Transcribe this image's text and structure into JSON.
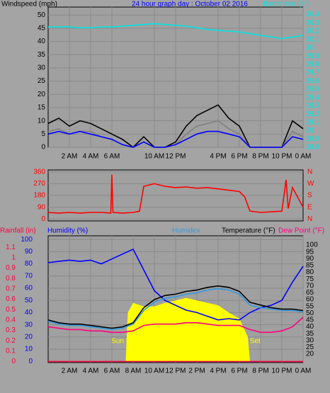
{
  "chart_data": [
    {
      "type": "line",
      "title": "24 hour graph day : October 02 2016",
      "axis_labels": [
        {
          "text": "Windspeed (mph)",
          "color": "#000000"
        },
        {
          "text": "Barometer (in)",
          "color": "#00e5e5"
        }
      ],
      "axis_colors": {
        "y": "#000000",
        "y2": "#00e5e5"
      },
      "grid": true,
      "xlim": [
        0,
        24
      ],
      "xticks": [
        {
          "value": 2,
          "label": "2 AM"
        },
        {
          "value": 4,
          "label": "4 AM"
        },
        {
          "value": 6,
          "label": "6 AM"
        },
        {
          "value": 10,
          "label": "10 AM"
        },
        {
          "value": 12,
          "label": "12 PM"
        },
        {
          "value": 16,
          "label": "4 PM"
        },
        {
          "value": 18,
          "label": "6 PM"
        },
        {
          "value": 20,
          "label": "8 PM"
        },
        {
          "value": 22,
          "label": "10 PM"
        },
        {
          "value": 24,
          "label": "0 AM"
        }
      ],
      "ylim": [
        0,
        53
      ],
      "yticks": [
        0,
        5,
        10,
        15,
        20,
        25,
        30,
        35,
        40,
        45,
        50
      ],
      "y2lim": [
        28.8,
        30.49
      ],
      "y2ticks": [
        28.8,
        28.9,
        29,
        29.1,
        29.2,
        29.3,
        29.4,
        29.5,
        29.6,
        29.7,
        29.8,
        29.9,
        30,
        30.1,
        30.2,
        30.3,
        30.4
      ],
      "x": [
        0,
        1,
        2,
        3,
        4,
        5,
        6,
        7,
        8,
        9,
        10,
        11,
        12,
        13,
        14,
        15,
        16,
        17,
        18,
        19,
        20,
        21,
        22,
        23,
        24
      ],
      "series": [
        {
          "color": "#000000",
          "axis": "y",
          "values": [
            9,
            11,
            8,
            10,
            9,
            7,
            5,
            3,
            0,
            4,
            0,
            0,
            2,
            8,
            12,
            14,
            16,
            11,
            8,
            0,
            0,
            0,
            0,
            10,
            7
          ]
        },
        {
          "color": "#808080",
          "axis": "y",
          "values": [
            6,
            7,
            5,
            6,
            6,
            4,
            3,
            1,
            0,
            2,
            0,
            0,
            1,
            5,
            8,
            9,
            10,
            7,
            5,
            0,
            0,
            0,
            0,
            6,
            4
          ]
        },
        {
          "color": "#0000ff",
          "axis": "y",
          "values": [
            5,
            6,
            5,
            6,
            5,
            4,
            3,
            1,
            0,
            2,
            0,
            0,
            1,
            3,
            5,
            6,
            6,
            5,
            4,
            0,
            0,
            0,
            0,
            4,
            3
          ]
        },
        {
          "color": "#00e5e5",
          "axis": "y2",
          "values": [
            30.25,
            30.25,
            30.25,
            30.24,
            30.24,
            30.25,
            30.25,
            30.26,
            30.27,
            30.28,
            30.29,
            30.28,
            30.27,
            30.26,
            30.24,
            30.22,
            30.21,
            30.2,
            30.19,
            30.17,
            30.15,
            30.13,
            30.11,
            30.13,
            30.15
          ]
        }
      ]
    },
    {
      "type": "line",
      "axis_colors": {
        "y": "#ff0000",
        "y2": "#ff0000"
      },
      "grid": true,
      "xlim": [
        0,
        24
      ],
      "ylim": [
        -15,
        375
      ],
      "yticks": [
        0,
        90,
        180,
        270,
        360
      ],
      "y2lim": [
        -15,
        375
      ],
      "y2ticks": [
        {
          "value": 0,
          "label": "N"
        },
        {
          "value": 90,
          "label": "E"
        },
        {
          "value": 180,
          "label": "S"
        },
        {
          "value": 270,
          "label": "W"
        },
        {
          "value": 360,
          "label": "N"
        }
      ],
      "x": [
        0,
        1,
        2,
        3,
        4,
        5,
        5.9,
        6,
        6.1,
        7,
        8,
        8.6,
        9,
        10,
        11,
        12,
        13,
        14,
        15,
        16,
        17,
        18,
        18.5,
        19,
        20,
        21,
        22,
        22.4,
        22.6,
        23,
        24
      ],
      "series": [
        {
          "color": "#ff0000",
          "axis": "y",
          "values": [
            50,
            45,
            50,
            45,
            50,
            50,
            45,
            340,
            50,
            45,
            50,
            60,
            250,
            270,
            250,
            240,
            245,
            235,
            240,
            230,
            220,
            210,
            170,
            60,
            50,
            55,
            60,
            300,
            80,
            240,
            90
          ]
        }
      ]
    },
    {
      "type": "line",
      "axis_labels": [
        {
          "text": "Rainfall (in)",
          "color": "#ff0040"
        },
        {
          "text": "Humidity (%)",
          "color": "#0000ff"
        },
        {
          "text": "Humidex",
          "color": "#3399dd"
        },
        {
          "text": "Temperature (°F)",
          "color": "#000000"
        },
        {
          "text": "Dew Point (°F)",
          "color": "#ff0080"
        }
      ],
      "axis_colors": {
        "y": "#0000ff",
        "y2": "#000000",
        "rain": "#ff0040"
      },
      "grid": true,
      "xlim": [
        0,
        24
      ],
      "xticks": [
        {
          "value": 2,
          "label": "2 AM"
        },
        {
          "value": 4,
          "label": "4 AM"
        },
        {
          "value": 6,
          "label": "6 AM"
        },
        {
          "value": 8,
          "label": "8 AM"
        },
        {
          "value": 10,
          "label": "10 AM"
        },
        {
          "value": 12,
          "label": "12 PM"
        },
        {
          "value": 14,
          "label": "2 PM"
        },
        {
          "value": 16,
          "label": "4 PM"
        },
        {
          "value": 18,
          "label": "6 PM"
        },
        {
          "value": 20,
          "label": "8 PM"
        },
        {
          "value": 22,
          "label": "10 PM"
        },
        {
          "value": 24,
          "label": "0 AM"
        }
      ],
      "ylim": [
        -1,
        103
      ],
      "yticks": [
        0,
        10,
        20,
        30,
        40,
        50,
        60,
        70,
        80,
        90,
        100
      ],
      "y2lim": [
        13.8,
        106.8
      ],
      "y2ticks": [
        20,
        25,
        30,
        35,
        40,
        45,
        50,
        55,
        60,
        65,
        70,
        75,
        80,
        85,
        90,
        95,
        100
      ],
      "rain_ylim": [
        -0.01,
        1.21
      ],
      "rain_yticks": [
        0,
        0.1,
        0.2,
        0.3,
        0.4,
        0.5,
        0.6,
        0.7,
        0.8,
        0.9,
        1,
        1.1
      ],
      "annotations": [
        {
          "text": "Sun Rise",
          "x": 7.3
        },
        {
          "text": "Sun Set",
          "x": 18.8
        }
      ],
      "x": [
        0,
        1,
        2,
        3,
        4,
        5,
        6,
        7,
        8,
        9,
        10,
        11,
        12,
        13,
        14,
        15,
        16,
        17,
        18,
        19,
        20,
        21,
        22,
        23,
        24
      ],
      "series": [
        {
          "type": "area",
          "color": "#ffff00",
          "axis": "y",
          "x": [
            7.3,
            7.5,
            8,
            9,
            10,
            11,
            12,
            13,
            14,
            15,
            16,
            17,
            18,
            18.8,
            19
          ],
          "values": [
            0,
            40,
            48,
            45,
            45,
            48,
            50,
            52,
            50,
            48,
            46,
            40,
            35,
            20,
            0
          ]
        },
        {
          "color": "#ff0040",
          "axis": "rain",
          "values": [
            0,
            0,
            0,
            0,
            0,
            0,
            0,
            0,
            0,
            0,
            0,
            0,
            0,
            0,
            0,
            0,
            0,
            0,
            0,
            0,
            0,
            0,
            0,
            0,
            0
          ]
        },
        {
          "color": "#0000ff",
          "axis": "y",
          "values": [
            81,
            82,
            83,
            82,
            83,
            80,
            84,
            88,
            92,
            75,
            58,
            50,
            46,
            42,
            40,
            37,
            34,
            35,
            34,
            40,
            44,
            46,
            50,
            65,
            78
          ]
        },
        {
          "color": "#ff0080",
          "axis": "y2",
          "values": [
            40,
            39,
            38,
            38,
            37,
            37,
            36,
            36,
            37,
            41,
            42,
            42,
            42,
            43,
            43,
            42,
            41,
            41,
            41,
            38,
            36,
            36,
            37,
            40,
            47
          ]
        },
        {
          "color": "#3399dd",
          "axis": "y2",
          "values": [
            44,
            42,
            41,
            41,
            40,
            39,
            38,
            39,
            42,
            52,
            58,
            61,
            62,
            64,
            65,
            67,
            68,
            67,
            64,
            56,
            54,
            53,
            52,
            52,
            51
          ]
        },
        {
          "color": "#000000",
          "axis": "y2",
          "values": [
            45,
            43,
            42,
            42,
            41,
            40,
            39,
            40,
            43,
            54,
            60,
            63,
            64,
            66,
            67,
            69,
            70,
            69,
            66,
            58,
            56,
            54,
            53,
            53,
            52
          ]
        }
      ]
    }
  ]
}
